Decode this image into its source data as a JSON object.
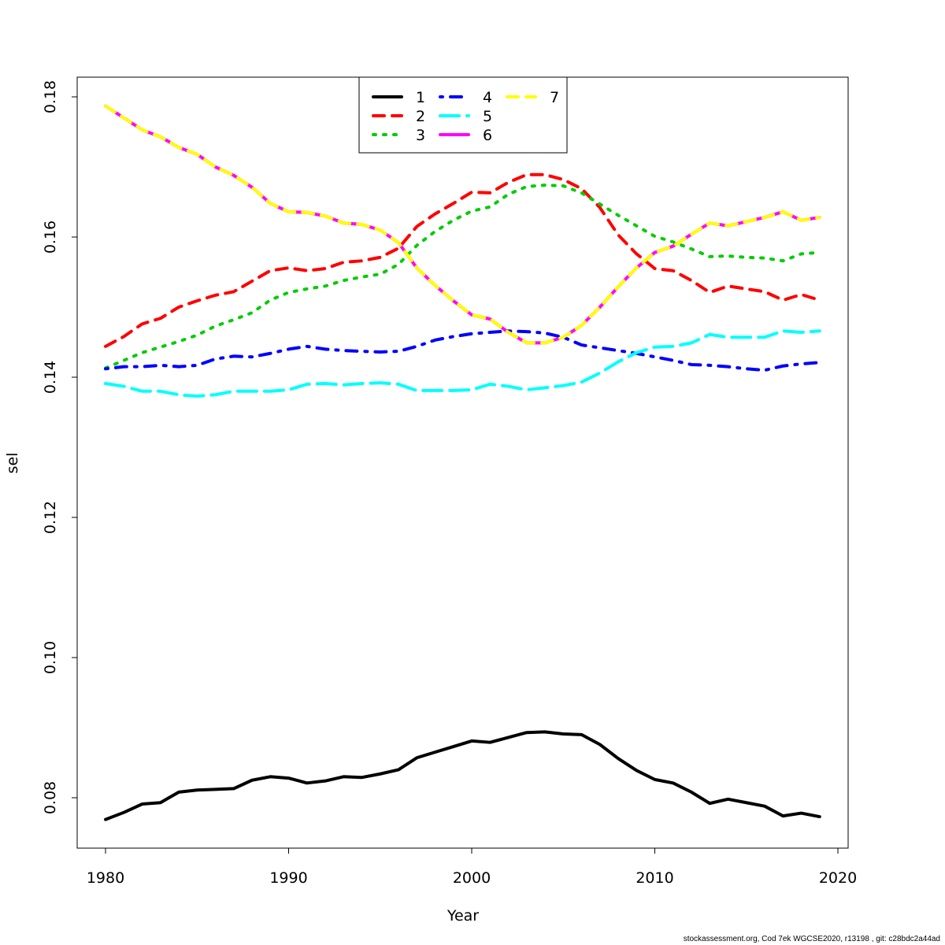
{
  "chart_data": {
    "type": "line",
    "title": "",
    "xlabel": "Year",
    "ylabel": "sel",
    "xlim": [
      1978.5,
      2020.6
    ],
    "ylim": [
      0.0729,
      0.1828
    ],
    "xticks": [
      1980,
      1990,
      2000,
      2010,
      2020
    ],
    "yticks": [
      0.08,
      0.1,
      0.12,
      0.14,
      0.16,
      0.18
    ],
    "ytick_labels": [
      "0.08",
      "0.10",
      "0.12",
      "0.14",
      "0.16",
      "0.18"
    ],
    "grid": false,
    "legend_placement": "top",
    "x": [
      1980,
      1981,
      1982,
      1983,
      1984,
      1985,
      1986,
      1987,
      1988,
      1989,
      1990,
      1991,
      1992,
      1993,
      1994,
      1995,
      1996,
      1997,
      1998,
      1999,
      2000,
      2001,
      2002,
      2003,
      2004,
      2005,
      2006,
      2007,
      2008,
      2009,
      2010,
      2011,
      2012,
      2013,
      2014,
      2015,
      2016,
      2017,
      2018,
      2019
    ],
    "series": [
      {
        "name": "1",
        "color": "#000000",
        "linetype": "solid",
        "values": [
          0.0769,
          0.0779,
          0.0791,
          0.0793,
          0.0808,
          0.0811,
          0.0812,
          0.0813,
          0.0825,
          0.083,
          0.0828,
          0.0821,
          0.0824,
          0.083,
          0.0829,
          0.0834,
          0.084,
          0.0857,
          0.0865,
          0.0873,
          0.0881,
          0.0879,
          0.0886,
          0.0893,
          0.0894,
          0.0891,
          0.089,
          0.0876,
          0.0856,
          0.0839,
          0.0826,
          0.0821,
          0.0808,
          0.0792,
          0.0798,
          0.0793,
          0.0788,
          0.0774,
          0.0778,
          0.0773
        ]
      },
      {
        "name": "2",
        "color": "#ff0000",
        "linetype": "dashed",
        "values": [
          0.1444,
          0.1458,
          0.1476,
          0.1484,
          0.15,
          0.1509,
          0.1517,
          0.1522,
          0.1537,
          0.1552,
          0.1556,
          0.1552,
          0.1555,
          0.1564,
          0.1566,
          0.1571,
          0.1584,
          0.1615,
          0.1633,
          0.1648,
          0.1664,
          0.1663,
          0.1678,
          0.1689,
          0.1689,
          0.1682,
          0.1669,
          0.1642,
          0.1603,
          0.1576,
          0.1555,
          0.1552,
          0.1538,
          0.1521,
          0.153,
          0.1526,
          0.1522,
          0.151,
          0.1518,
          0.151
        ]
      },
      {
        "name": "3",
        "color": "#00cd00",
        "linetype": "dotted",
        "values": [
          0.1413,
          0.1424,
          0.1435,
          0.1443,
          0.1451,
          0.146,
          0.1473,
          0.1482,
          0.1492,
          0.151,
          0.1521,
          0.1526,
          0.153,
          0.1538,
          0.1543,
          0.1547,
          0.1561,
          0.1588,
          0.1608,
          0.1624,
          0.1637,
          0.1643,
          0.1661,
          0.1672,
          0.1674,
          0.1673,
          0.1663,
          0.1647,
          0.1631,
          0.1616,
          0.1601,
          0.1593,
          0.1583,
          0.1572,
          0.1573,
          0.1571,
          0.157,
          0.1566,
          0.1576,
          0.1578
        ]
      },
      {
        "name": "4",
        "color": "#0000ff",
        "linetype": "dotdash",
        "values": [
          0.1412,
          0.1415,
          0.1415,
          0.1417,
          0.1415,
          0.1417,
          0.1426,
          0.143,
          0.1429,
          0.1434,
          0.144,
          0.1444,
          0.144,
          0.1438,
          0.1437,
          0.1436,
          0.1437,
          0.1444,
          0.1453,
          0.1458,
          0.1462,
          0.1464,
          0.1466,
          0.1465,
          0.1463,
          0.1457,
          0.1446,
          0.1442,
          0.1438,
          0.1434,
          0.1429,
          0.1424,
          0.1418,
          0.1417,
          0.1415,
          0.1412,
          0.141,
          0.1416,
          0.1419,
          0.1421
        ]
      },
      {
        "name": "5",
        "color": "#00ffff",
        "linetype": "longdash",
        "values": [
          0.1391,
          0.1387,
          0.138,
          0.138,
          0.1375,
          0.1373,
          0.1375,
          0.138,
          0.138,
          0.138,
          0.1382,
          0.139,
          0.1391,
          0.1389,
          0.1391,
          0.1392,
          0.139,
          0.1381,
          0.1381,
          0.1381,
          0.1382,
          0.139,
          0.1387,
          0.1382,
          0.1385,
          0.1388,
          0.1393,
          0.1406,
          0.1422,
          0.1435,
          0.1443,
          0.1444,
          0.1449,
          0.1461,
          0.1457,
          0.1457,
          0.1457,
          0.1466,
          0.1464,
          0.1466
        ]
      },
      {
        "name": "6",
        "color": "#ff00ff",
        "linetype": "solid",
        "values": [
          0.1787,
          0.177,
          0.1753,
          0.1743,
          0.1728,
          0.1718,
          0.17,
          0.1688,
          0.1671,
          0.1648,
          0.1636,
          0.1635,
          0.163,
          0.162,
          0.1618,
          0.161,
          0.1592,
          0.1556,
          0.1531,
          0.1509,
          0.1489,
          0.1483,
          0.1464,
          0.1449,
          0.1449,
          0.1457,
          0.1474,
          0.15,
          0.1529,
          0.1556,
          0.1578,
          0.1587,
          0.1604,
          0.162,
          0.1616,
          0.1622,
          0.1628,
          0.1636,
          0.1624,
          0.1628
        ]
      },
      {
        "name": "7",
        "color": "#ffff00",
        "linetype": "dashed",
        "values": [
          0.1787,
          0.177,
          0.1753,
          0.1743,
          0.1728,
          0.1718,
          0.17,
          0.1688,
          0.1671,
          0.1648,
          0.1636,
          0.1635,
          0.163,
          0.162,
          0.1618,
          0.161,
          0.1592,
          0.1556,
          0.1531,
          0.1509,
          0.1489,
          0.1483,
          0.1464,
          0.1449,
          0.1449,
          0.1457,
          0.1474,
          0.15,
          0.1529,
          0.1556,
          0.1578,
          0.1587,
          0.1604,
          0.162,
          0.1616,
          0.1622,
          0.1628,
          0.1636,
          0.1624,
          0.1628
        ]
      }
    ]
  },
  "footer": "stockassessment.org, Cod  7ek  WGCSE2020, r13198 , git: c28bdc2a44ad"
}
